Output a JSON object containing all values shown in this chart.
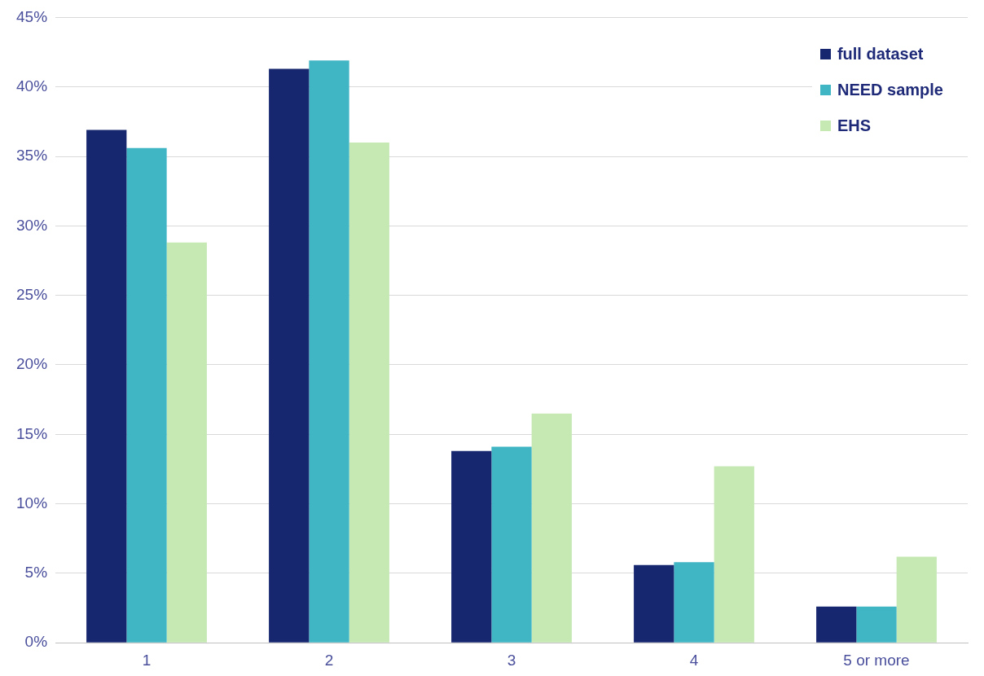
{
  "chart_data": {
    "type": "bar",
    "categories": [
      "1",
      "2",
      "3",
      "4",
      "5 or more"
    ],
    "series": [
      {
        "name": "full dataset",
        "color": "#16266f",
        "values": [
          36.9,
          41.3,
          13.8,
          5.6,
          2.6
        ]
      },
      {
        "name": "NEED sample",
        "color": "#40b5c4",
        "values": [
          35.6,
          41.9,
          14.1,
          5.8,
          2.6
        ]
      },
      {
        "name": "EHS",
        "color": "#c6e9b4",
        "values": [
          28.8,
          36.0,
          16.5,
          12.7,
          6.2
        ]
      }
    ],
    "ylim": [
      0,
      45
    ],
    "yticks": [
      {
        "value": 0,
        "label": "0%"
      },
      {
        "value": 5,
        "label": "5%"
      },
      {
        "value": 10,
        "label": "10%"
      },
      {
        "value": 15,
        "label": "15%"
      },
      {
        "value": 20,
        "label": "20%"
      },
      {
        "value": 25,
        "label": "25%"
      },
      {
        "value": 30,
        "label": "30%"
      },
      {
        "value": 35,
        "label": "35%"
      },
      {
        "value": 40,
        "label": "40%"
      },
      {
        "value": 45,
        "label": "45%"
      }
    ],
    "grid": "y",
    "legend": "top right"
  }
}
